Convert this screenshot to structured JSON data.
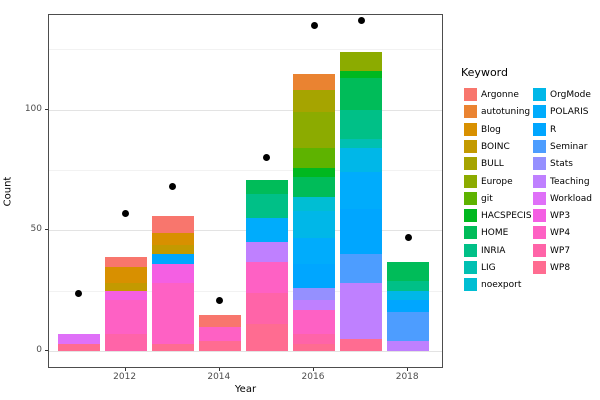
{
  "chart_data": {
    "type": "bar",
    "stacked": true,
    "title": "",
    "xlabel": "Year",
    "ylabel": "Count",
    "legend_title": "Keyword",
    "legend_position": "right",
    "grid": true,
    "x_ticks": [
      2012,
      2014,
      2016,
      2018
    ],
    "y_ticks": [
      0,
      50,
      100
    ],
    "y_minor_ticks": [
      25,
      75,
      125
    ],
    "ylim": [
      0,
      139
    ],
    "years": [
      2011,
      2012,
      2013,
      2014,
      2015,
      2016,
      2017,
      2018
    ],
    "keywords": [
      {
        "name": "Argonne",
        "color": "#F8766D"
      },
      {
        "name": "autotuning",
        "color": "#EA8331"
      },
      {
        "name": "Blog",
        "color": "#D89000"
      },
      {
        "name": "BOINC",
        "color": "#C39A00"
      },
      {
        "name": "BULL",
        "color": "#A6A400"
      },
      {
        "name": "Europe",
        "color": "#8CAB00"
      },
      {
        "name": "git",
        "color": "#5EB300"
      },
      {
        "name": "HACSPECIS",
        "color": "#00B81F"
      },
      {
        "name": "HOME",
        "color": "#00BC59"
      },
      {
        "name": "INRIA",
        "color": "#00C087"
      },
      {
        "name": "LIG",
        "color": "#00C0B2"
      },
      {
        "name": "noexport",
        "color": "#00BED3"
      },
      {
        "name": "OrgMode",
        "color": "#00B7E8"
      },
      {
        "name": "POLARIS",
        "color": "#00ACFC"
      },
      {
        "name": "R",
        "color": "#00A6FF"
      },
      {
        "name": "Seminar",
        "color": "#4D9DFF"
      },
      {
        "name": "Stats",
        "color": "#9590FF"
      },
      {
        "name": "Teaching",
        "color": "#BF80FF"
      },
      {
        "name": "Workload",
        "color": "#DF70F8"
      },
      {
        "name": "WP3",
        "color": "#F45FE3"
      },
      {
        "name": "WP4",
        "color": "#FE61C4"
      },
      {
        "name": "WP7",
        "color": "#FF64A8"
      },
      {
        "name": "WP8",
        "color": "#FF6C91"
      }
    ],
    "bars": [
      {
        "year": 2011,
        "total": 7,
        "segments": [
          {
            "keyword": "WP8",
            "value": 3
          },
          {
            "keyword": "Workload",
            "value": 4
          }
        ]
      },
      {
        "year": 2012,
        "total": 39,
        "segments": [
          {
            "keyword": "WP7",
            "value": 7
          },
          {
            "keyword": "WP4",
            "value": 14
          },
          {
            "keyword": "WP3",
            "value": 4
          },
          {
            "keyword": "BOINC",
            "value": 3
          },
          {
            "keyword": "Blog",
            "value": 7
          },
          {
            "keyword": "Argonne",
            "value": 4
          }
        ]
      },
      {
        "year": 2013,
        "total": 56,
        "segments": [
          {
            "keyword": "WP8",
            "value": 3
          },
          {
            "keyword": "WP4",
            "value": 25
          },
          {
            "keyword": "WP3",
            "value": 8
          },
          {
            "keyword": "R",
            "value": 4
          },
          {
            "keyword": "BOINC",
            "value": 4
          },
          {
            "keyword": "Blog",
            "value": 5
          },
          {
            "keyword": "Argonne",
            "value": 7
          }
        ]
      },
      {
        "year": 2014,
        "total": 15,
        "segments": [
          {
            "keyword": "WP8",
            "value": 4
          },
          {
            "keyword": "WP4",
            "value": 6
          },
          {
            "keyword": "Argonne",
            "value": 5
          }
        ]
      },
      {
        "year": 2015,
        "total": 71,
        "segments": [
          {
            "keyword": "WP8",
            "value": 11
          },
          {
            "keyword": "WP7",
            "value": 13
          },
          {
            "keyword": "WP4",
            "value": 13
          },
          {
            "keyword": "Teaching",
            "value": 8
          },
          {
            "keyword": "POLARIS",
            "value": 10
          },
          {
            "keyword": "INRIA",
            "value": 10
          },
          {
            "keyword": "HOME",
            "value": 6
          }
        ]
      },
      {
        "year": 2016,
        "total": 115,
        "segments": [
          {
            "keyword": "WP8",
            "value": 3
          },
          {
            "keyword": "WP7",
            "value": 4
          },
          {
            "keyword": "WP4",
            "value": 10
          },
          {
            "keyword": "Teaching",
            "value": 4
          },
          {
            "keyword": "Stats",
            "value": 5
          },
          {
            "keyword": "R",
            "value": 10
          },
          {
            "keyword": "POLARIS",
            "value": 11
          },
          {
            "keyword": "OrgMode",
            "value": 11
          },
          {
            "keyword": "noexport",
            "value": 6
          },
          {
            "keyword": "HOME",
            "value": 8
          },
          {
            "keyword": "HACSPECIS",
            "value": 4
          },
          {
            "keyword": "git",
            "value": 8
          },
          {
            "keyword": "Europe",
            "value": 15
          },
          {
            "keyword": "BULL",
            "value": 9
          },
          {
            "keyword": "autotuning",
            "value": 7
          }
        ]
      },
      {
        "year": 2017,
        "total": 124,
        "segments": [
          {
            "keyword": "WP8",
            "value": 5
          },
          {
            "keyword": "Teaching",
            "value": 23
          },
          {
            "keyword": "Seminar",
            "value": 12
          },
          {
            "keyword": "R",
            "value": 19
          },
          {
            "keyword": "POLARIS",
            "value": 15
          },
          {
            "keyword": "OrgMode",
            "value": 10
          },
          {
            "keyword": "LIG",
            "value": 4
          },
          {
            "keyword": "INRIA",
            "value": 12
          },
          {
            "keyword": "HOME",
            "value": 13
          },
          {
            "keyword": "HACSPECIS",
            "value": 3
          },
          {
            "keyword": "Europe",
            "value": 8
          }
        ]
      },
      {
        "year": 2018,
        "total": 37,
        "segments": [
          {
            "keyword": "Teaching",
            "value": 4
          },
          {
            "keyword": "Seminar",
            "value": 12
          },
          {
            "keyword": "R",
            "value": 5
          },
          {
            "keyword": "OrgMode",
            "value": 4
          },
          {
            "keyword": "INRIA",
            "value": 4
          },
          {
            "keyword": "HOME",
            "value": 8
          }
        ]
      }
    ],
    "points": [
      {
        "year": 2011,
        "value": 24
      },
      {
        "year": 2012,
        "value": 57
      },
      {
        "year": 2013,
        "value": 68
      },
      {
        "year": 2014,
        "value": 21
      },
      {
        "year": 2015,
        "value": 80
      },
      {
        "year": 2016,
        "value": 135
      },
      {
        "year": 2017,
        "value": 137
      },
      {
        "year": 2018,
        "value": 47
      }
    ]
  }
}
